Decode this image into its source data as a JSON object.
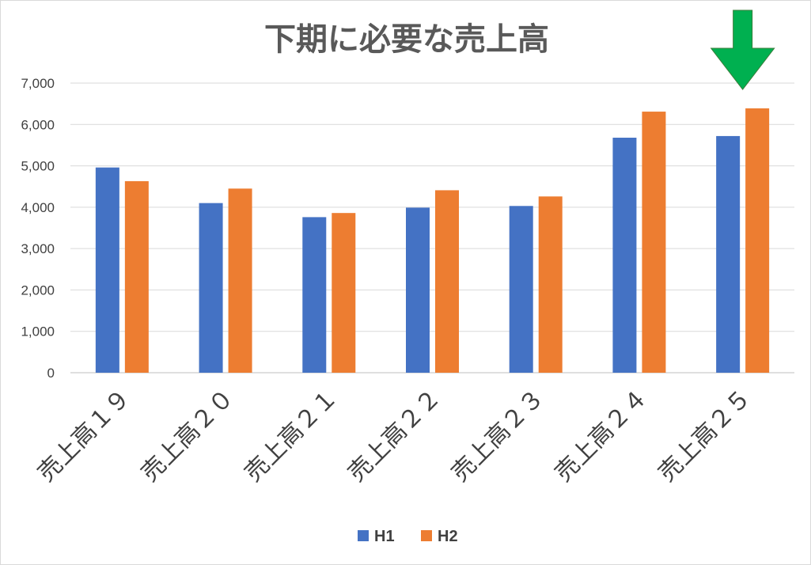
{
  "chart_data": {
    "type": "bar",
    "title": "下期に必要な売上高",
    "categories": [
      "売上高１９",
      "売上高２０",
      "売上高２１",
      "売上高２２",
      "売上高２３",
      "売上高２４",
      "売上高２５"
    ],
    "series": [
      {
        "name": "H1",
        "color": "#4472c4",
        "values": [
          4960,
          4100,
          3760,
          3990,
          4030,
          5680,
          5720
        ]
      },
      {
        "name": "H2",
        "color": "#ed7d31",
        "values": [
          4630,
          4450,
          3860,
          4410,
          4260,
          6310,
          6390
        ]
      }
    ],
    "yticks": [
      "0",
      "1,000",
      "2,000",
      "3,000",
      "4,000",
      "5,000",
      "6,000",
      "7,000"
    ],
    "ylim": [
      0,
      7000
    ],
    "grid": true,
    "legend_position": "bottom",
    "annotation": {
      "type": "arrow-down",
      "color": "#00b050",
      "target_category": "売上高２５"
    }
  }
}
